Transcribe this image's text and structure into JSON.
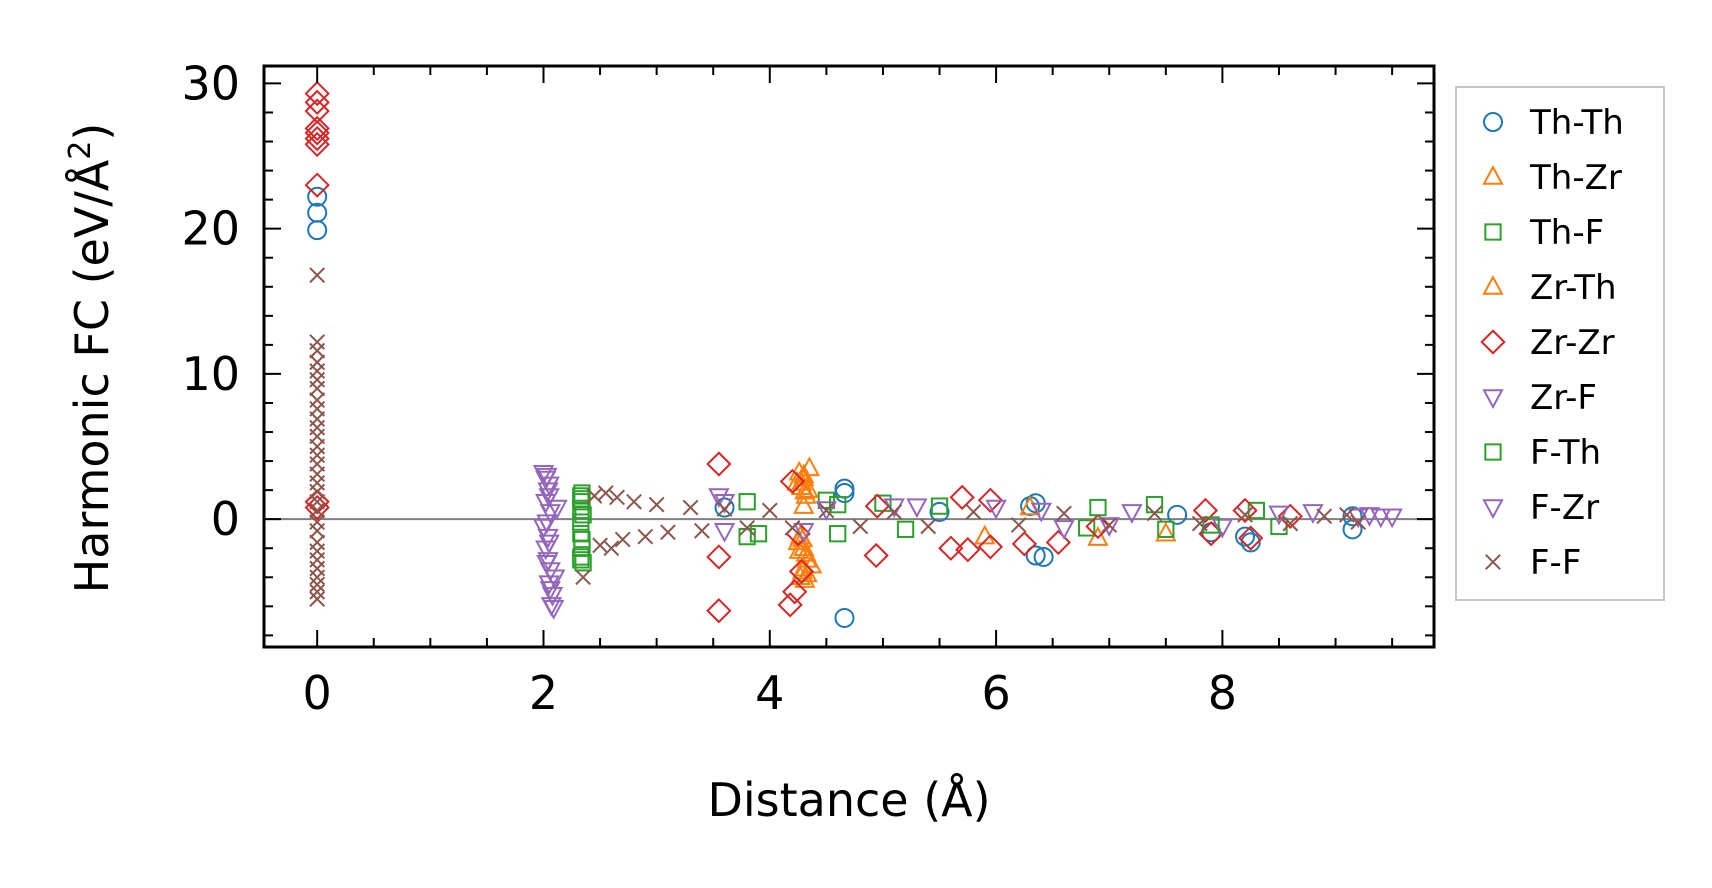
{
  "chart_data": {
    "type": "scatter",
    "title": "",
    "xlabel": "Distance (Å)",
    "ylabel_main": "Harmonic FC (eV/Å",
    "ylabel_sup": "2",
    "ylabel_close": ")",
    "xlim": [
      -0.47,
      9.87
    ],
    "ylim": [
      -8.8,
      31.2
    ],
    "xticks": [
      0,
      2,
      4,
      6,
      8
    ],
    "xtick_labels": [
      "0",
      "2",
      "4",
      "6",
      "8"
    ],
    "yticks": [
      0,
      10,
      20,
      30
    ],
    "ytick_labels": [
      "0",
      "10",
      "20",
      "30"
    ],
    "zero_line": 0,
    "legend_position": "outside-right",
    "series": [
      {
        "name": "Th-Th",
        "marker": "circle",
        "color": "#1f77b4",
        "points": [
          [
            0,
            22.2
          ],
          [
            0,
            21.1
          ],
          [
            0,
            19.9
          ],
          [
            4.66,
            2.1
          ],
          [
            4.66,
            1.8
          ],
          [
            4.66,
            -6.8
          ],
          [
            6.35,
            1.1
          ],
          [
            6.35,
            -2.5
          ],
          [
            6.42,
            -2.6
          ],
          [
            6.3,
            0.9
          ],
          [
            8.25,
            -1.6
          ],
          [
            8.2,
            -1.2
          ],
          [
            9.15,
            0.2
          ],
          [
            9.15,
            -0.7
          ],
          [
            7.6,
            0.3
          ],
          [
            5.5,
            0.5
          ],
          [
            3.6,
            0.8
          ],
          [
            7.9,
            -0.9
          ]
        ]
      },
      {
        "name": "Th-Zr",
        "marker": "triangle-up",
        "color": "#ff7f0e",
        "points": [
          [
            4.26,
            3.2
          ],
          [
            4.3,
            2.8
          ],
          [
            4.28,
            2.2
          ],
          [
            4.32,
            1.6
          ],
          [
            4.3,
            0.9
          ],
          [
            4.27,
            -1.2
          ],
          [
            4.3,
            -2.0
          ],
          [
            4.33,
            -2.8
          ],
          [
            4.29,
            -3.6
          ],
          [
            4.31,
            -4.2
          ],
          [
            4.25,
            -1.6
          ],
          [
            4.35,
            3.5
          ],
          [
            4.24,
            2.5
          ],
          [
            4.37,
            -3.2
          ],
          [
            5.9,
            -1.2
          ],
          [
            6.9,
            -1.3
          ],
          [
            7.5,
            -1.0
          ],
          [
            6.3,
            0.8
          ]
        ]
      },
      {
        "name": "Th-F",
        "marker": "square",
        "color": "#2ca02c",
        "points": [
          [
            2.33,
            1.6
          ],
          [
            2.34,
            1.2
          ],
          [
            2.33,
            0.6
          ],
          [
            2.33,
            -0.2
          ],
          [
            2.33,
            -1.0
          ],
          [
            2.34,
            -2.0
          ],
          [
            2.33,
            -2.6
          ],
          [
            2.35,
            -3.0
          ],
          [
            2.34,
            1.8
          ],
          [
            3.8,
            1.2
          ],
          [
            3.8,
            -1.2
          ],
          [
            4.5,
            1.3
          ],
          [
            4.6,
            -1.0
          ],
          [
            5.0,
            1.1
          ],
          [
            5.5,
            0.9
          ],
          [
            7.4,
            1.0
          ],
          [
            7.5,
            -0.7
          ],
          [
            8.3,
            0.6
          ],
          [
            8.5,
            -0.5
          ],
          [
            6.8,
            -0.6
          ]
        ]
      },
      {
        "name": "Zr-Th",
        "marker": "triangle-up",
        "color": "#ff7f0e",
        "points": [
          [
            4.3,
            3.0
          ],
          [
            4.28,
            2.5
          ],
          [
            4.31,
            1.9
          ],
          [
            4.29,
            -1.4
          ],
          [
            4.32,
            -2.4
          ],
          [
            4.3,
            -3.4
          ],
          [
            4.27,
            -4.0
          ],
          [
            4.34,
            2.0
          ],
          [
            4.26,
            -2.2
          ],
          [
            4.33,
            -3.8
          ]
        ]
      },
      {
        "name": "Zr-Zr",
        "marker": "diamond",
        "color": "#d62728",
        "points": [
          [
            0,
            29.3
          ],
          [
            0,
            28.7
          ],
          [
            0,
            28.1
          ],
          [
            0,
            26.9
          ],
          [
            0,
            26.6
          ],
          [
            0,
            26.2
          ],
          [
            0,
            25.8
          ],
          [
            0,
            23.0
          ],
          [
            0,
            1.2
          ],
          [
            0,
            0.8
          ],
          [
            3.55,
            3.8
          ],
          [
            3.55,
            -2.6
          ],
          [
            3.55,
            -6.3
          ],
          [
            4.2,
            2.6
          ],
          [
            4.25,
            -1.0
          ],
          [
            4.18,
            -5.9
          ],
          [
            4.22,
            -5.0
          ],
          [
            4.28,
            -3.6
          ],
          [
            4.94,
            -2.5
          ],
          [
            4.95,
            0.9
          ],
          [
            5.6,
            -2.0
          ],
          [
            5.7,
            1.5
          ],
          [
            5.75,
            -2.1
          ],
          [
            5.95,
            -1.9
          ],
          [
            5.95,
            1.3
          ],
          [
            6.25,
            -1.7
          ],
          [
            6.55,
            -1.6
          ],
          [
            7.85,
            0.6
          ],
          [
            7.9,
            -1.0
          ],
          [
            8.2,
            0.6
          ],
          [
            8.25,
            -1.3
          ],
          [
            8.6,
            0.2
          ],
          [
            6.9,
            -0.5
          ]
        ]
      },
      {
        "name": "Zr-F",
        "marker": "triangle-down",
        "color": "#9467bd",
        "points": [
          [
            2.0,
            3.2
          ],
          [
            2.02,
            2.8
          ],
          [
            2.05,
            2.4
          ],
          [
            2.04,
            2.0
          ],
          [
            2.02,
            1.2
          ],
          [
            2.06,
            0.5
          ],
          [
            2.0,
            -0.5
          ],
          [
            2.04,
            -1.2
          ],
          [
            2.02,
            -2.0
          ],
          [
            2.04,
            -2.8
          ],
          [
            2.06,
            -3.5
          ],
          [
            2.05,
            -4.4
          ],
          [
            2.08,
            -5.2
          ],
          [
            2.07,
            -5.9
          ],
          [
            2.1,
            -4.0
          ],
          [
            2.12,
            0.8
          ],
          [
            3.55,
            1.6
          ],
          [
            3.6,
            -0.8
          ],
          [
            4.5,
            0.7
          ],
          [
            5.1,
            0.9
          ],
          [
            6.0,
            0.8
          ],
          [
            6.6,
            -0.6
          ],
          [
            7.2,
            0.5
          ],
          [
            8.0,
            -0.5
          ],
          [
            8.8,
            0.5
          ],
          [
            9.3,
            0.3
          ],
          [
            9.4,
            0.2
          ],
          [
            9.5,
            0.2
          ]
        ]
      },
      {
        "name": "F-Th",
        "marker": "square",
        "color": "#2ca02c",
        "points": [
          [
            2.33,
            1.4
          ],
          [
            2.35,
            0.3
          ],
          [
            2.34,
            -1.4
          ],
          [
            2.33,
            -2.8
          ],
          [
            3.9,
            -1.0
          ],
          [
            4.6,
            1.0
          ],
          [
            5.2,
            -0.7
          ],
          [
            6.9,
            0.8
          ],
          [
            7.9,
            -0.4
          ]
        ]
      },
      {
        "name": "F-Zr",
        "marker": "triangle-down",
        "color": "#9467bd",
        "points": [
          [
            2.03,
            3.0
          ],
          [
            2.05,
            1.6
          ],
          [
            2.03,
            -0.2
          ],
          [
            2.05,
            -1.6
          ],
          [
            2.03,
            -3.0
          ],
          [
            2.06,
            -4.8
          ],
          [
            2.09,
            -6.1
          ],
          [
            3.6,
            1.2
          ],
          [
            4.3,
            -0.8
          ],
          [
            5.3,
            0.9
          ],
          [
            6.4,
            0.6
          ],
          [
            7.0,
            -0.4
          ],
          [
            8.5,
            0.4
          ],
          [
            9.2,
            0.2
          ]
        ]
      },
      {
        "name": "F-F",
        "marker": "x",
        "color": "#8c564b",
        "points": [
          [
            0,
            16.8
          ],
          [
            0,
            12.2
          ],
          [
            0,
            11.6
          ],
          [
            0,
            10.8
          ],
          [
            0,
            10.2
          ],
          [
            0,
            9.6
          ],
          [
            0,
            9.0
          ],
          [
            0,
            8.2
          ],
          [
            0,
            7.6
          ],
          [
            0,
            6.9
          ],
          [
            0,
            6.3
          ],
          [
            0,
            5.7
          ],
          [
            0,
            5.0
          ],
          [
            0,
            4.4
          ],
          [
            0,
            3.8
          ],
          [
            0,
            3.1
          ],
          [
            0,
            2.5
          ],
          [
            0,
            1.9
          ],
          [
            0,
            1.2
          ],
          [
            0,
            0.6
          ],
          [
            0,
            -0.2
          ],
          [
            0,
            -0.8
          ],
          [
            0,
            -1.6
          ],
          [
            0,
            -2.2
          ],
          [
            0,
            -2.8
          ],
          [
            0,
            -3.4
          ],
          [
            0,
            -4.0
          ],
          [
            0,
            -4.5
          ],
          [
            0,
            -5.0
          ],
          [
            0,
            -5.5
          ],
          [
            2.35,
            -4.0
          ],
          [
            2.45,
            1.6
          ],
          [
            2.5,
            -1.8
          ],
          [
            2.55,
            1.8
          ],
          [
            2.6,
            -2.0
          ],
          [
            2.65,
            1.5
          ],
          [
            2.7,
            -1.4
          ],
          [
            2.8,
            1.2
          ],
          [
            2.9,
            -1.2
          ],
          [
            3.0,
            1.0
          ],
          [
            3.1,
            -0.9
          ],
          [
            3.3,
            0.8
          ],
          [
            3.4,
            -0.8
          ],
          [
            3.6,
            0.7
          ],
          [
            3.8,
            -0.6
          ],
          [
            4.0,
            0.6
          ],
          [
            4.2,
            -0.6
          ],
          [
            4.5,
            0.6
          ],
          [
            4.8,
            -0.5
          ],
          [
            5.1,
            0.5
          ],
          [
            5.4,
            -0.5
          ],
          [
            5.8,
            0.5
          ],
          [
            6.2,
            -0.4
          ],
          [
            6.6,
            0.4
          ],
          [
            7.0,
            -0.4
          ],
          [
            7.4,
            0.4
          ],
          [
            7.8,
            -0.3
          ],
          [
            8.2,
            0.3
          ],
          [
            8.6,
            -0.3
          ],
          [
            8.9,
            0.2
          ],
          [
            9.1,
            0.3
          ],
          [
            9.2,
            -0.2
          ]
        ]
      }
    ]
  }
}
